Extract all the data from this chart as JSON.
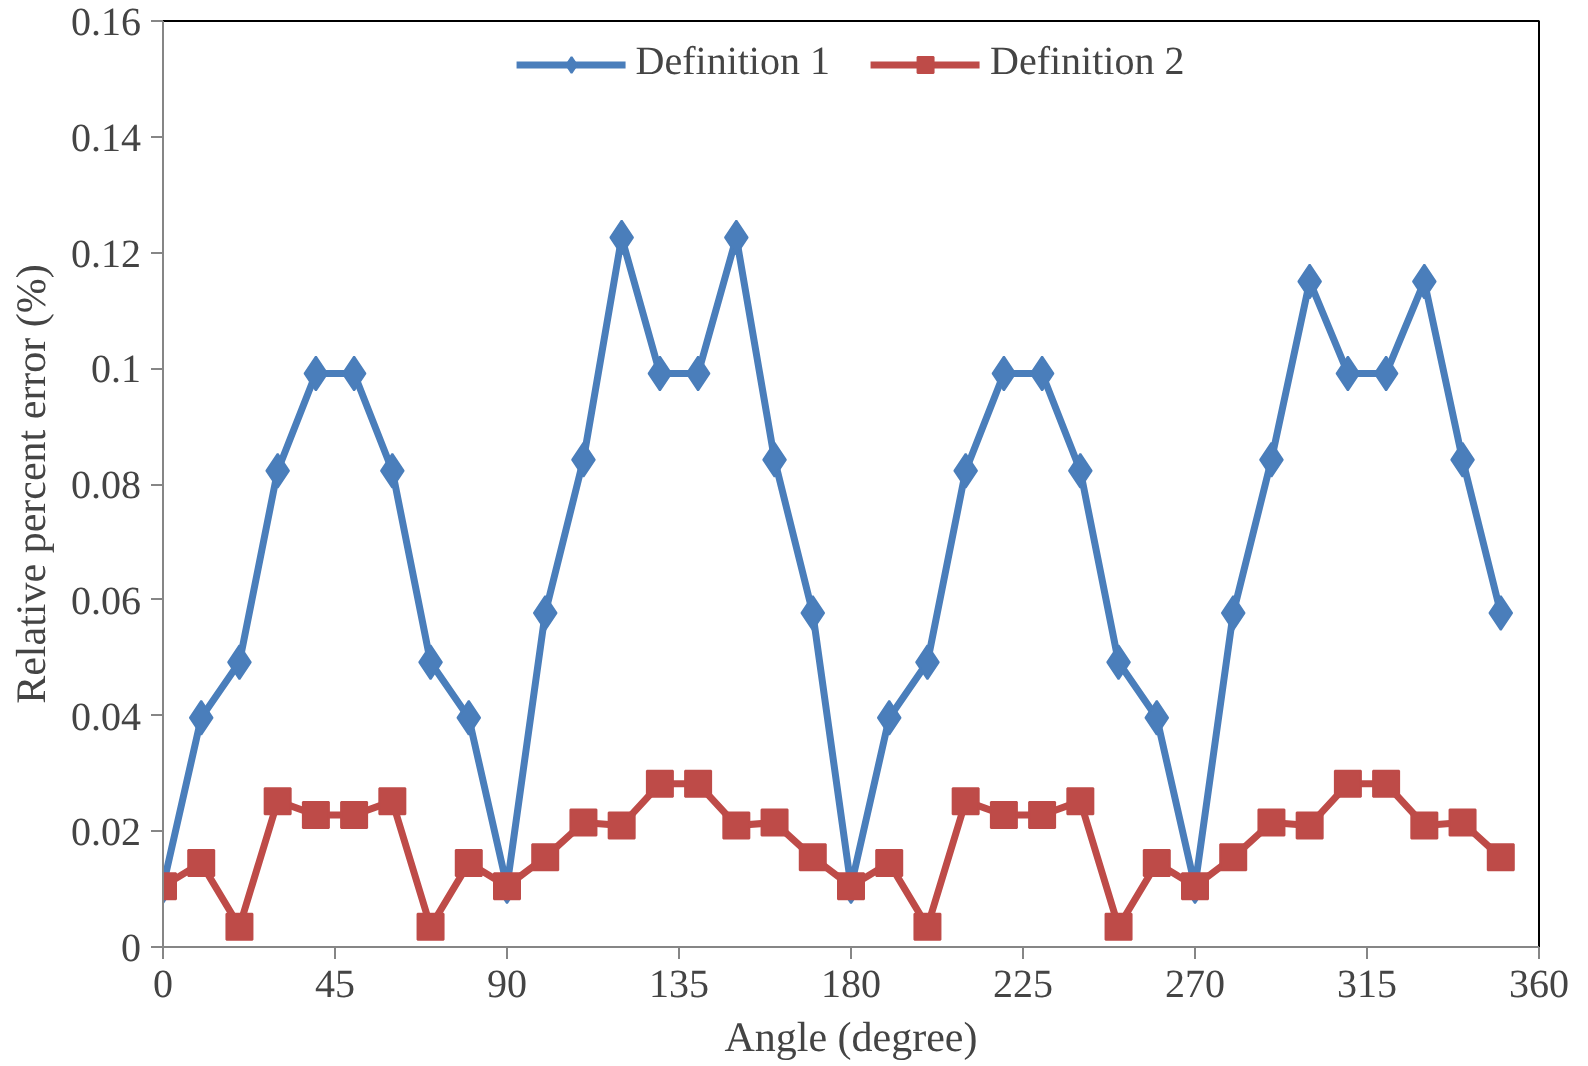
{
  "chart_data": {
    "type": "line",
    "xlabel": "Angle (degree)",
    "ylabel": "Relative percent error (%)",
    "x": [
      0,
      10,
      20,
      30,
      40,
      50,
      60,
      70,
      80,
      90,
      100,
      110,
      120,
      130,
      140,
      150,
      160,
      170,
      180,
      190,
      200,
      210,
      220,
      230,
      240,
      250,
      260,
      270,
      280,
      290,
      300,
      310,
      320,
      330,
      340,
      350
    ],
    "series": [
      {
        "name": "Definition 1",
        "color": "#4a7ebb",
        "marker": "diamond",
        "values": [
          0.0105,
          0.0396,
          0.0492,
          0.0823,
          0.0991,
          0.0991,
          0.0823,
          0.0492,
          0.0396,
          0.0105,
          0.0577,
          0.0842,
          0.1226,
          0.0991,
          0.0991,
          0.1226,
          0.0842,
          0.0577,
          0.0105,
          0.0396,
          0.0492,
          0.0823,
          0.0991,
          0.0991,
          0.0823,
          0.0492,
          0.0396,
          0.0105,
          0.0577,
          0.0842,
          0.115,
          0.0991,
          0.0991,
          0.115,
          0.0842,
          0.0577
        ]
      },
      {
        "name": "Definition 2",
        "color": "#be4b48",
        "marker": "square",
        "values": [
          0.0105,
          0.0145,
          0.0035,
          0.0252,
          0.0228,
          0.0228,
          0.0252,
          0.0035,
          0.0145,
          0.0105,
          0.0155,
          0.0215,
          0.021,
          0.0282,
          0.0282,
          0.021,
          0.0215,
          0.0155,
          0.0105,
          0.0145,
          0.0035,
          0.0252,
          0.0228,
          0.0228,
          0.0252,
          0.0035,
          0.0145,
          0.0105,
          0.0155,
          0.0215,
          0.021,
          0.0282,
          0.0282,
          0.021,
          0.0215,
          0.0155
        ]
      }
    ],
    "xlim": [
      0,
      360
    ],
    "xticks": [
      0,
      45,
      90,
      135,
      180,
      225,
      270,
      315,
      360
    ],
    "ylim": [
      0,
      0.16
    ],
    "yticks": [
      0,
      0.02,
      0.04,
      0.06,
      0.08,
      0.1,
      0.12,
      0.14,
      0.16
    ],
    "grid": false,
    "legend": "top",
    "line_style": "solid"
  }
}
